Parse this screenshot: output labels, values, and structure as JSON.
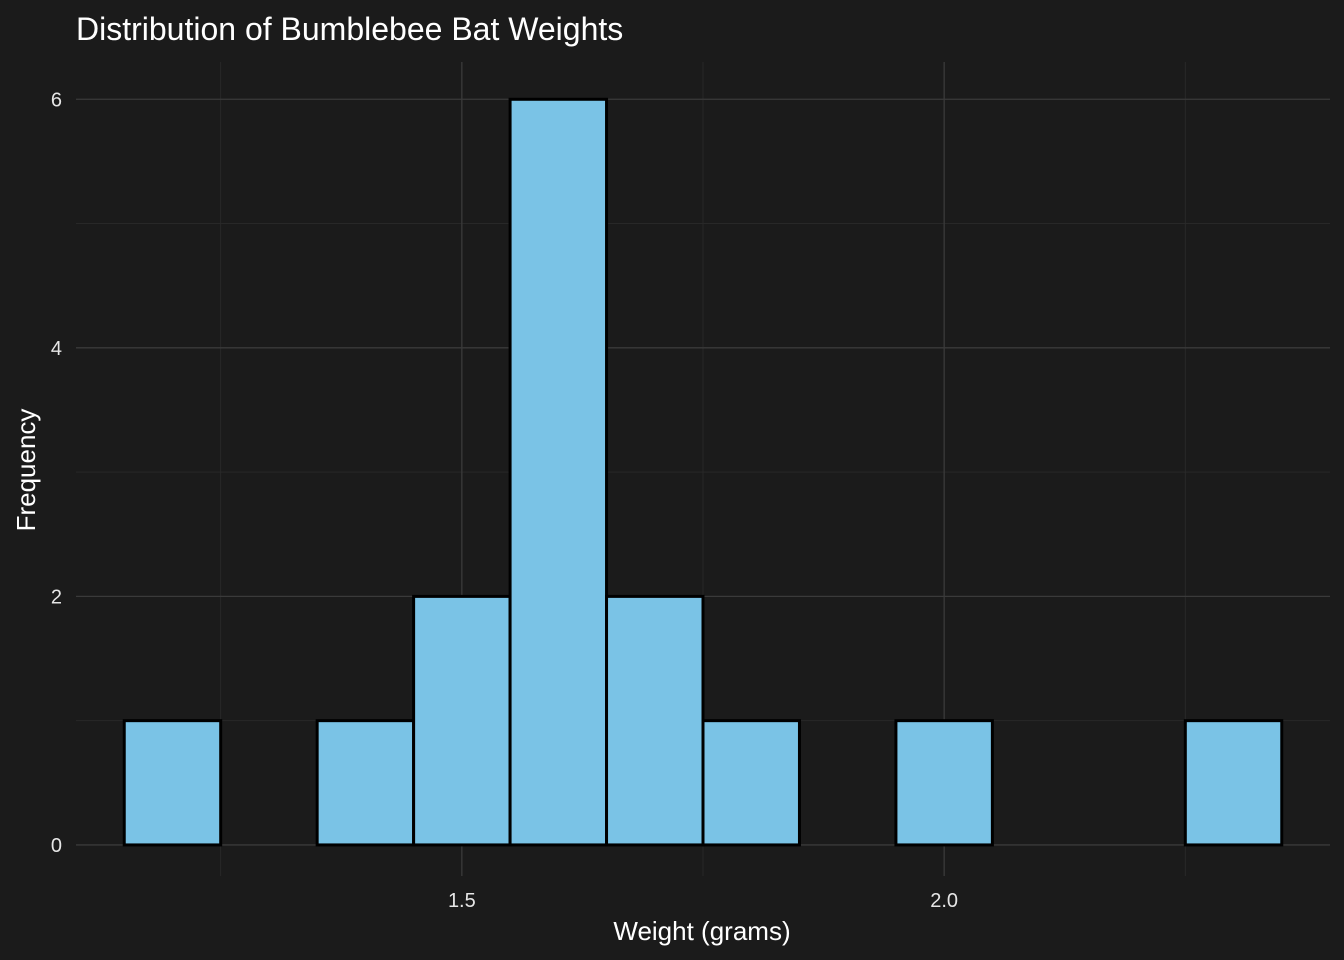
{
  "chart_data": {
    "type": "bar",
    "title": "Distribution of Bumblebee Bat Weights",
    "xlabel": "Weight (grams)",
    "ylabel": "Frequency",
    "bin_width": 0.1,
    "bins": [
      {
        "x0": 1.15,
        "x1": 1.25,
        "count": 1
      },
      {
        "x0": 1.25,
        "x1": 1.35,
        "count": 0
      },
      {
        "x0": 1.35,
        "x1": 1.45,
        "count": 1
      },
      {
        "x0": 1.45,
        "x1": 1.55,
        "count": 2
      },
      {
        "x0": 1.55,
        "x1": 1.65,
        "count": 6
      },
      {
        "x0": 1.65,
        "x1": 1.75,
        "count": 2
      },
      {
        "x0": 1.75,
        "x1": 1.85,
        "count": 1
      },
      {
        "x0": 1.85,
        "x1": 1.95,
        "count": 0
      },
      {
        "x0": 1.95,
        "x1": 2.05,
        "count": 1
      },
      {
        "x0": 2.05,
        "x1": 2.15,
        "count": 0
      },
      {
        "x0": 2.15,
        "x1": 2.25,
        "count": 0
      },
      {
        "x0": 2.25,
        "x1": 2.35,
        "count": 1
      }
    ],
    "xlim": [
      1.1,
      2.4
    ],
    "ylim": [
      -0.25,
      6.3
    ],
    "x_ticks": [
      1.5,
      2.0
    ],
    "x_tick_labels": [
      "1.5",
      "2.0"
    ],
    "x_minor_ticks": [
      1.25,
      1.75,
      2.25
    ],
    "y_ticks": [
      0,
      2,
      4,
      6
    ],
    "y_tick_labels": [
      "0",
      "2",
      "4",
      "6"
    ],
    "y_minor_ticks": [
      1,
      3,
      5
    ],
    "grid": true,
    "legend": "none",
    "colors": {
      "background": "#1b1b1b",
      "bar_fill": "#7ac3e6",
      "bar_outline": "#000000",
      "text": "#ffffff"
    }
  }
}
